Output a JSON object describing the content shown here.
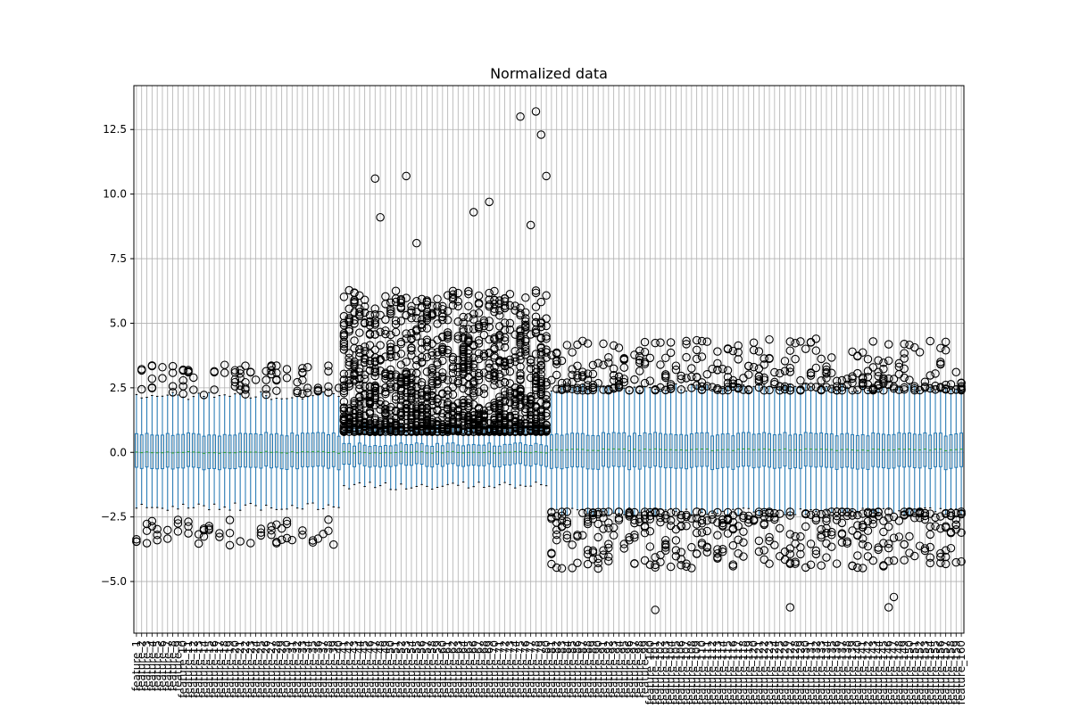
{
  "chart_data": {
    "type": "box",
    "title": "Normalized data",
    "xlabel": "",
    "ylabel": "",
    "ylim": [
      -7.0,
      14.2
    ],
    "y_ticks": [
      -5.0,
      -2.5,
      0.0,
      2.5,
      5.0,
      7.5,
      10.0,
      12.5
    ],
    "y_tick_labels": [
      "−5.0",
      "−2.5",
      "0.0",
      "2.5",
      "5.0",
      "7.5",
      "10.0",
      "12.5"
    ],
    "grid": true,
    "n_features": 160,
    "category_prefix": "feature_",
    "first_category": "feature_1",
    "last_category": "feature_160",
    "groups": [
      {
        "features": "1-40",
        "box": {
          "q1": -0.6,
          "median": 0.0,
          "q3": 0.7
        },
        "whiskers": [
          -2.1,
          2.2
        ],
        "fliers_high": [
          2.3,
          2.5,
          2.8,
          3.1,
          3.3
        ],
        "fliers_low": [
          -2.7,
          -2.9,
          -3.1,
          -3.3,
          -3.5
        ]
      },
      {
        "features": "41-80",
        "box": {
          "q1": -0.5,
          "median": 0.0,
          "q3": 0.3
        },
        "whiskers": [
          -1.3,
          1.0
        ],
        "fliers_high": [
          1.0,
          1.5,
          2.0,
          2.5,
          3.0,
          3.5,
          4.2,
          5.0,
          6.5,
          8.2
        ],
        "fliers_low": []
      },
      {
        "features": "81-160",
        "box": {
          "q1": -0.6,
          "median": 0.1,
          "q3": 0.7
        },
        "whiskers": [
          -2.3,
          2.5
        ],
        "fliers_high": [
          2.5,
          2.8,
          3.0,
          3.3,
          3.7
        ],
        "fliers_low": [
          -2.4,
          -2.7,
          -3.0,
          -3.3,
          -3.7
        ]
      }
    ],
    "extreme_outliers": [
      {
        "feature": 47,
        "value": 10.6
      },
      {
        "feature": 48,
        "value": 9.1
      },
      {
        "feature": 53,
        "value": 10.7
      },
      {
        "feature": 55,
        "value": 8.1
      },
      {
        "feature": 66,
        "value": 9.3
      },
      {
        "feature": 69,
        "value": 9.7
      },
      {
        "feature": 75,
        "value": 13.0
      },
      {
        "feature": 77,
        "value": 8.8
      },
      {
        "feature": 78,
        "value": 13.2
      },
      {
        "feature": 79,
        "value": 12.3
      },
      {
        "feature": 80,
        "value": 10.7
      },
      {
        "feature": 101,
        "value": -6.1
      },
      {
        "feature": 127,
        "value": -6.0
      },
      {
        "feature": 146,
        "value": -6.0
      },
      {
        "feature": 147,
        "value": -5.6
      }
    ]
  },
  "colors": {
    "box": "#1f77b4",
    "median": "#2ca02c",
    "flier": "#000000",
    "grid": "#b0b0b0"
  }
}
